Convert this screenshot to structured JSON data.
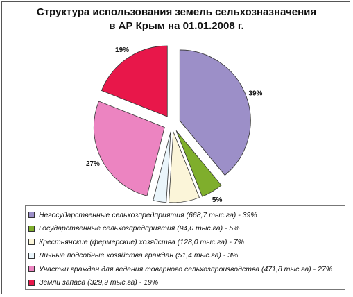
{
  "chart_data": {
    "type": "pie",
    "title_lines": [
      "Структура использования земель сельхозназначения",
      "в АР Крым на 01.01.2008 г."
    ],
    "slices": [
      {
        "label": "Негосударственные сельхозпредприятия (668,7 тыс.га) - 39%",
        "value": 39,
        "pct_label": "39%",
        "color": "#9c8fc8"
      },
      {
        "label": "Государственные сельхозпредприятия (94,0 тыс.га) - 5%",
        "value": 5,
        "pct_label": "5%",
        "color": "#7fae2c"
      },
      {
        "label": "Крестьянские (фермерские) хозяйства (128,0 тыс.га) - 7%",
        "value": 7,
        "pct_label": "7%",
        "color": "#fbf5d9"
      },
      {
        "label": "Личные подсобные хозяйства граждан (51,4 тыс.га) - 3%",
        "value": 3,
        "pct_label": "3%",
        "color": "#eaf5fb"
      },
      {
        "label": "Участки граждан для ведения товарного сельхозпроизводства (471,8 тыс.га) - 27%",
        "value": 27,
        "pct_label": "27%",
        "color": "#ec84c1"
      },
      {
        "label": "Земли запаса (329,9 тыс.га) - 19%",
        "value": 19,
        "pct_label": "19%",
        "color": "#e8174a"
      }
    ],
    "legend_position": "bottom"
  }
}
